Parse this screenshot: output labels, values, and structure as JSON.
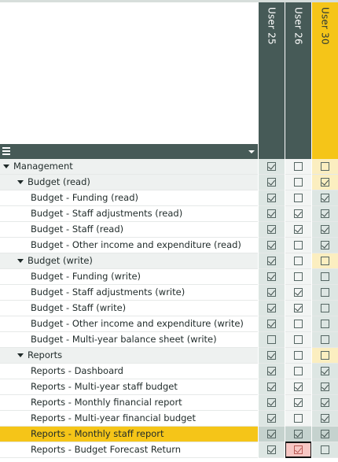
{
  "users": [
    "User 25",
    "User 26",
    "User 30"
  ],
  "colors": {
    "dark": "#465a57",
    "accent": "#f5c518",
    "selected_cell": "#f7c7c4"
  },
  "toolbar": {
    "menu_icon": "hamburger-icon",
    "dropdown_icon": "caret-down-icon"
  },
  "rows": [
    {
      "label": "Management",
      "level": 0,
      "group": true,
      "checks": [
        true,
        false,
        false
      ]
    },
    {
      "label": "Budget (read)",
      "level": 1,
      "group": true,
      "checks": [
        true,
        false,
        true
      ]
    },
    {
      "label": "Budget - Funding (read)",
      "level": 2,
      "checks": [
        true,
        false,
        true
      ]
    },
    {
      "label": "Budget - Staff adjustments (read)",
      "level": 2,
      "checks": [
        true,
        true,
        true
      ]
    },
    {
      "label": "Budget - Staff (read)",
      "level": 2,
      "checks": [
        true,
        true,
        true
      ]
    },
    {
      "label": "Budget - Other income and expenditure (read)",
      "level": 2,
      "checks": [
        true,
        false,
        true
      ]
    },
    {
      "label": "Budget (write)",
      "level": 1,
      "group": true,
      "checks": [
        true,
        false,
        false
      ]
    },
    {
      "label": "Budget - Funding (write)",
      "level": 2,
      "checks": [
        true,
        false,
        false
      ]
    },
    {
      "label": "Budget - Staff adjustments (write)",
      "level": 2,
      "checks": [
        true,
        true,
        false
      ]
    },
    {
      "label": "Budget - Staff (write)",
      "level": 2,
      "checks": [
        true,
        true,
        false
      ]
    },
    {
      "label": "Budget - Other income and expenditure (write)",
      "level": 2,
      "checks": [
        true,
        false,
        false
      ]
    },
    {
      "label": "Budget - Multi-year balance sheet (write)",
      "level": 2,
      "checks": [
        false,
        false,
        false
      ]
    },
    {
      "label": "Reports",
      "level": 1,
      "group": true,
      "checks": [
        true,
        false,
        false
      ]
    },
    {
      "label": "Reports - Dashboard",
      "level": 2,
      "checks": [
        true,
        false,
        true
      ]
    },
    {
      "label": "Reports - Multi-year staff budget",
      "level": 2,
      "checks": [
        true,
        true,
        true
      ]
    },
    {
      "label": "Reports - Monthly financial report",
      "level": 2,
      "checks": [
        true,
        true,
        true
      ]
    },
    {
      "label": "Reports - Multi-year financial budget",
      "level": 2,
      "checks": [
        true,
        false,
        true
      ]
    },
    {
      "label": "Reports - Monthly staff report",
      "level": 2,
      "highlight": true,
      "checks": [
        true,
        true,
        true
      ]
    },
    {
      "label": "Reports - Budget Forecast Return",
      "level": 2,
      "checks": [
        true,
        true,
        false
      ],
      "selected_col": 1
    }
  ]
}
